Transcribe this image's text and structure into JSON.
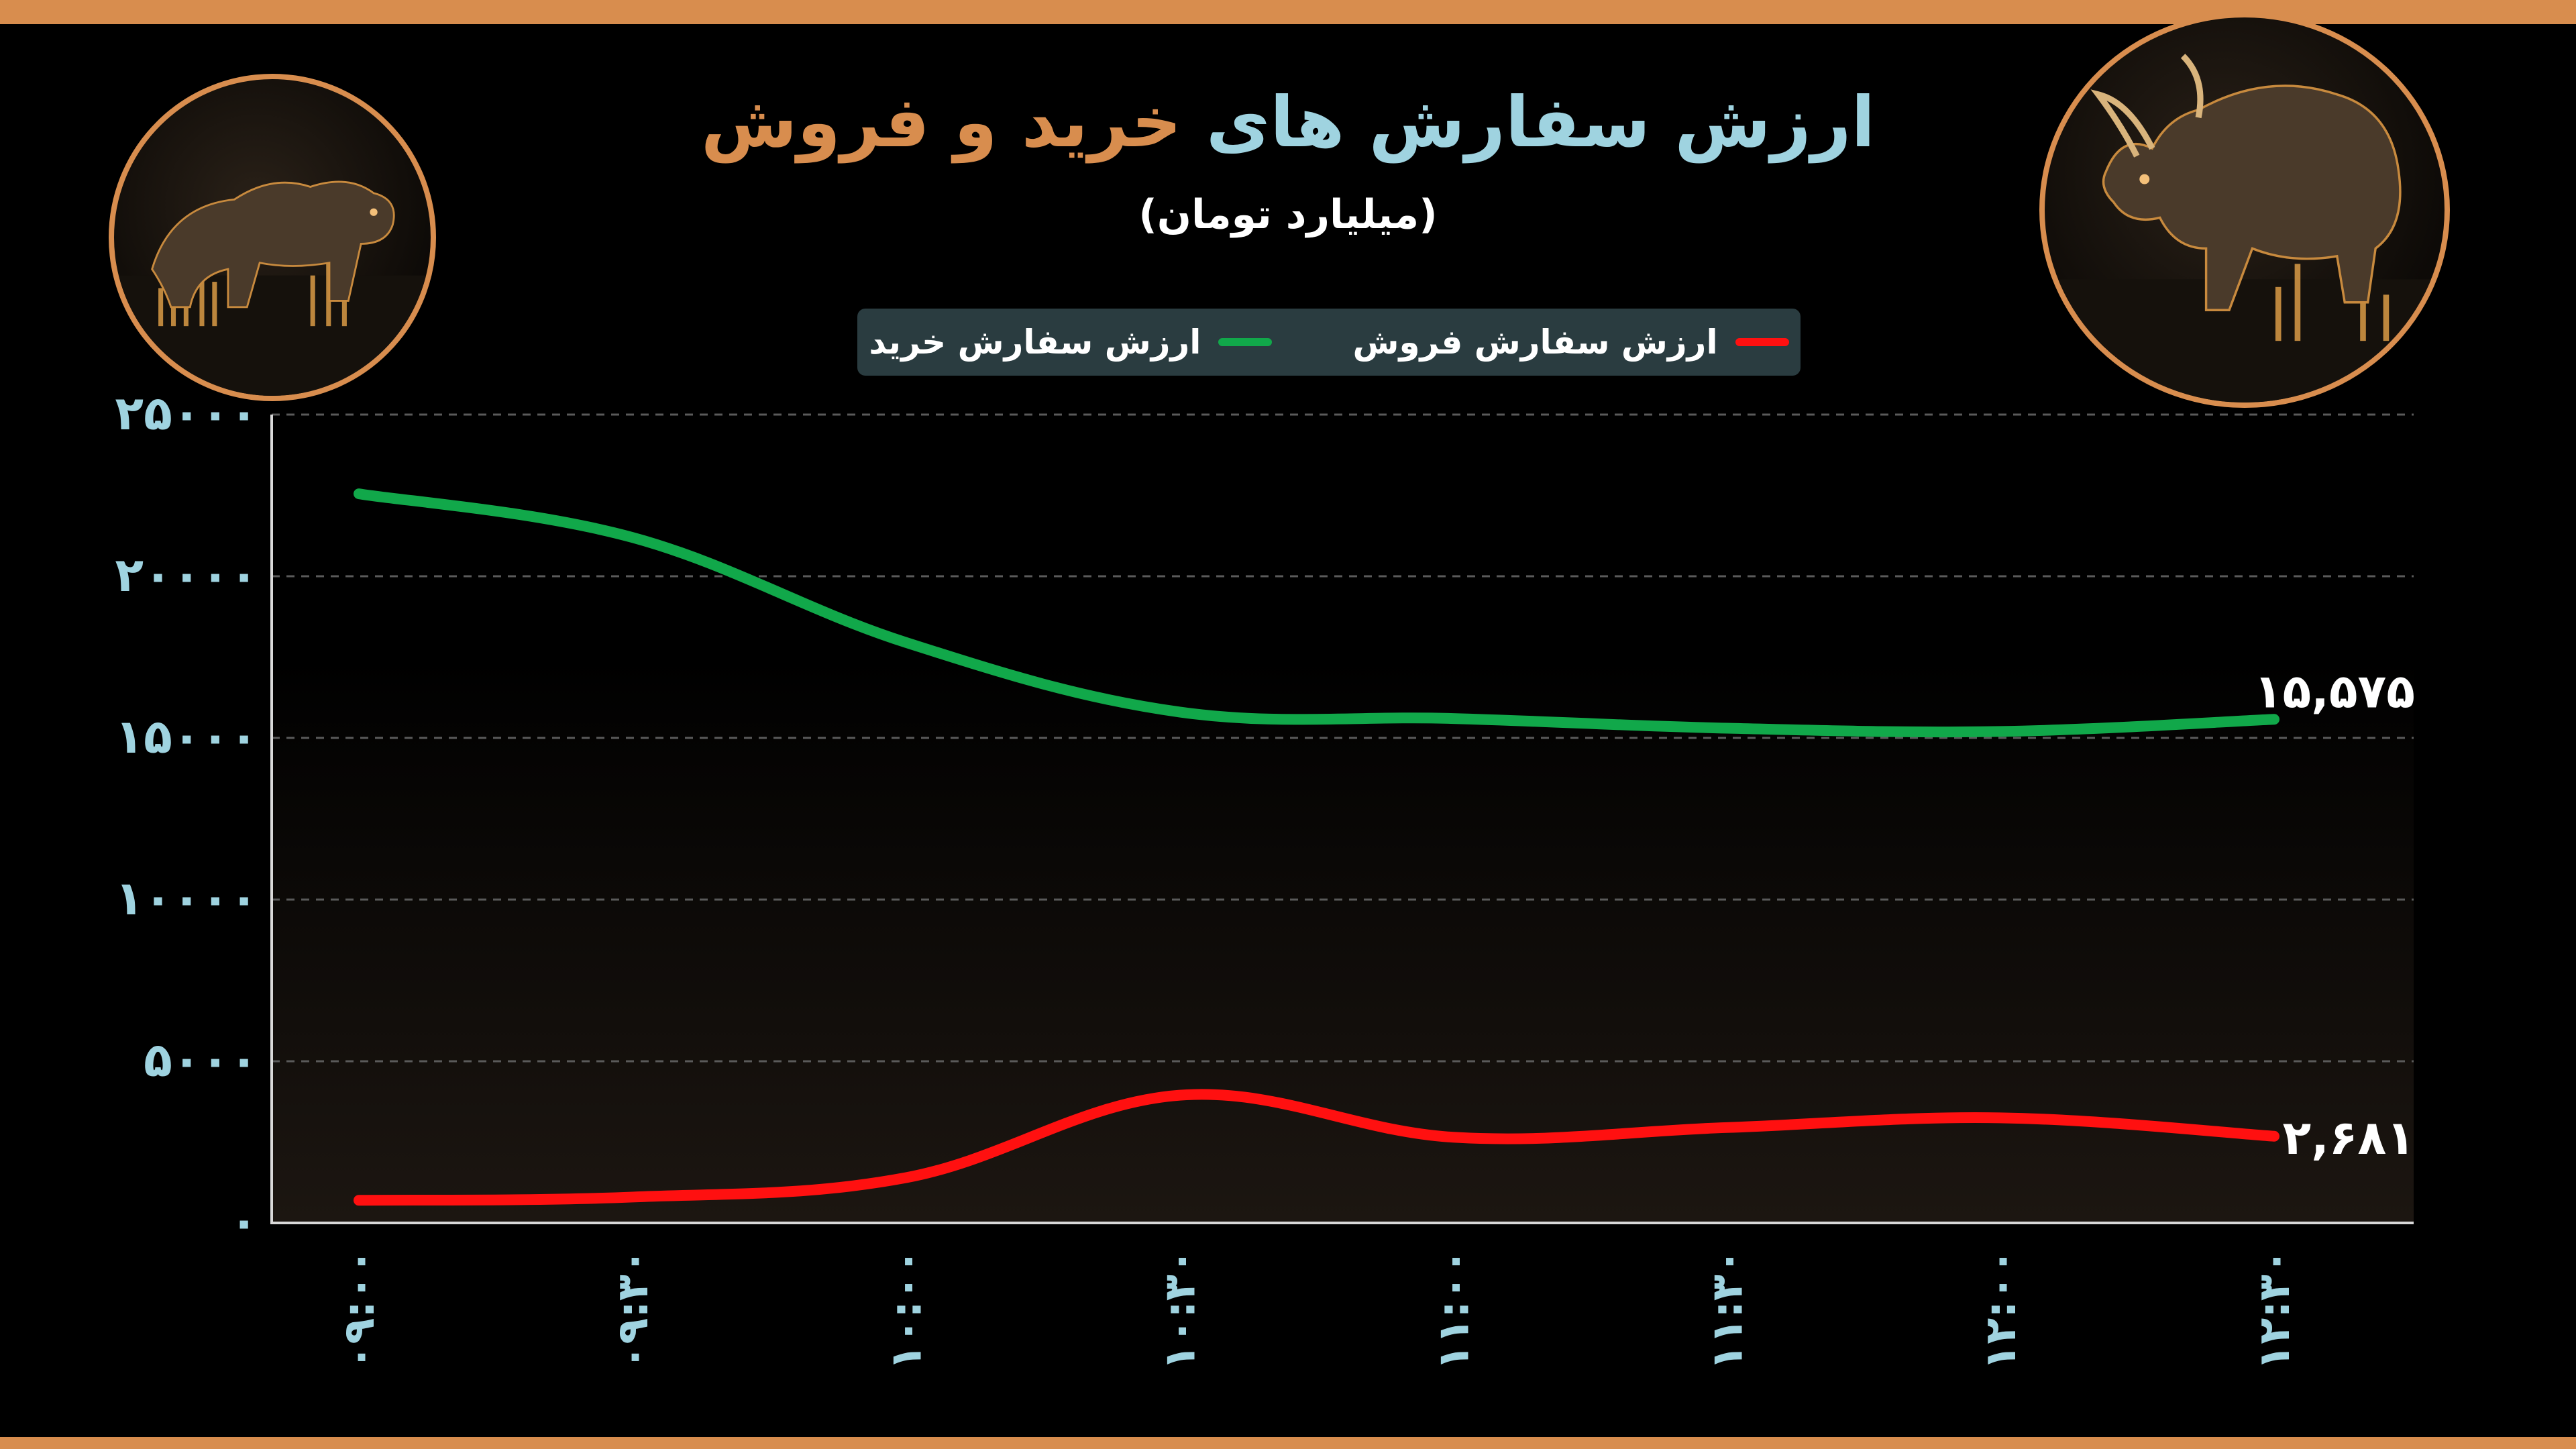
{
  "header": {
    "title_part1": "ارزش سفارش های",
    "title_part2": "خرید و فروش",
    "subtitle": "(میلیارد تومان)",
    "title_color_1": "#9fd3e0",
    "title_color_2": "#d88d4e"
  },
  "legend": {
    "buy_label": "ارزش سفارش خرید",
    "sell_label": "ارزش سفارش فروش"
  },
  "colors": {
    "buy": "#11a84a",
    "sell": "#ff1010",
    "accent": "#d88d4e",
    "axis_label": "#9fd3e0"
  },
  "icons": {
    "left": "bear-icon",
    "right": "bull-icon"
  },
  "chart_data": {
    "type": "line",
    "categories": [
      "۰۹:۰۰",
      "۰۹:۳۰",
      "۱۰:۰۰",
      "۱۰:۳۰",
      "۱۱:۰۰",
      "۱۱:۳۰",
      "۱۲:۰۰",
      "۱۲:۳۰"
    ],
    "ylim": [
      0,
      25000
    ],
    "yticks": [
      0,
      5000,
      10000,
      15000,
      20000,
      25000
    ],
    "ytick_labels": [
      "۰",
      "۵۰۰۰",
      "۱۰۰۰۰",
      "۱۵۰۰۰",
      "۲۰۰۰۰",
      "۲۵۰۰۰"
    ],
    "grid": true,
    "legend_position": "top-center",
    "series": [
      {
        "name": "ارزش سفارش خرید",
        "values": [
          22550,
          21200,
          17950,
          15800,
          15600,
          15300,
          15200,
          15575
        ],
        "end_label": "۱۵,۵۷۵"
      },
      {
        "name": "ارزش سفارش فروش",
        "values": [
          700,
          800,
          1400,
          3950,
          2650,
          2950,
          3250,
          2681
        ],
        "end_label": "۲,۶۸۱"
      }
    ]
  }
}
